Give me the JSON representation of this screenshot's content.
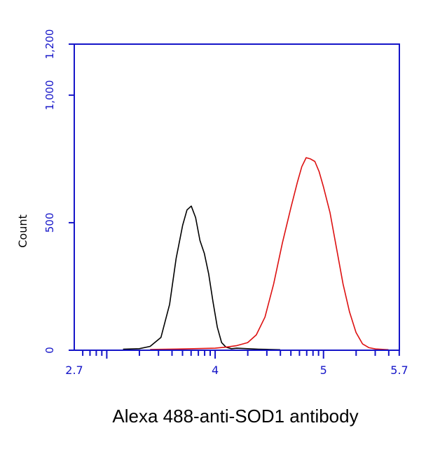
{
  "chart_data": {
    "type": "line",
    "title": "",
    "xlabel": "Alexa 488-anti-SOD1 antibody",
    "ylabel": "Count",
    "x_scale": "log10",
    "xlim": [
      2.7,
      5.7
    ],
    "ylim": [
      0,
      1200
    ],
    "y_ticks": [
      {
        "value": 0,
        "label": "0"
      },
      {
        "value": 500,
        "label": "500"
      },
      {
        "value": 1000,
        "label": "1,000"
      },
      {
        "value": 1200,
        "label": "1,200"
      }
    ],
    "x_tick_labels": [
      {
        "value": 2.7,
        "label": "2.7"
      },
      {
        "value": 4,
        "label": "4"
      },
      {
        "value": 5,
        "label": "5"
      },
      {
        "value": 5.7,
        "label": "5.7"
      }
    ],
    "grid": false,
    "series": [
      {
        "color": "#000000",
        "x": [
          3.15,
          3.3,
          3.4,
          3.5,
          3.58,
          3.64,
          3.7,
          3.74,
          3.78,
          3.82,
          3.86,
          3.9,
          3.94,
          3.98,
          4.02,
          4.06,
          4.1,
          4.15,
          4.2,
          4.3,
          4.4,
          4.5,
          4.6
        ],
        "y": [
          4,
          6,
          15,
          50,
          180,
          360,
          490,
          550,
          565,
          520,
          430,
          380,
          300,
          190,
          90,
          30,
          12,
          6,
          8,
          6,
          4,
          3,
          2
        ]
      },
      {
        "color": "#dd1111",
        "x": [
          3.4,
          3.7,
          4.0,
          4.1,
          4.2,
          4.3,
          4.38,
          4.46,
          4.54,
          4.62,
          4.7,
          4.76,
          4.8,
          4.84,
          4.88,
          4.92,
          4.96,
          5.0,
          5.06,
          5.12,
          5.18,
          5.24,
          5.3,
          5.36,
          5.42,
          5.48,
          5.56,
          5.6
        ],
        "y": [
          3,
          5,
          8,
          12,
          18,
          30,
          60,
          130,
          260,
          420,
          560,
          660,
          720,
          755,
          750,
          740,
          700,
          640,
          540,
          400,
          260,
          150,
          70,
          25,
          10,
          5,
          3,
          2
        ]
      }
    ]
  }
}
